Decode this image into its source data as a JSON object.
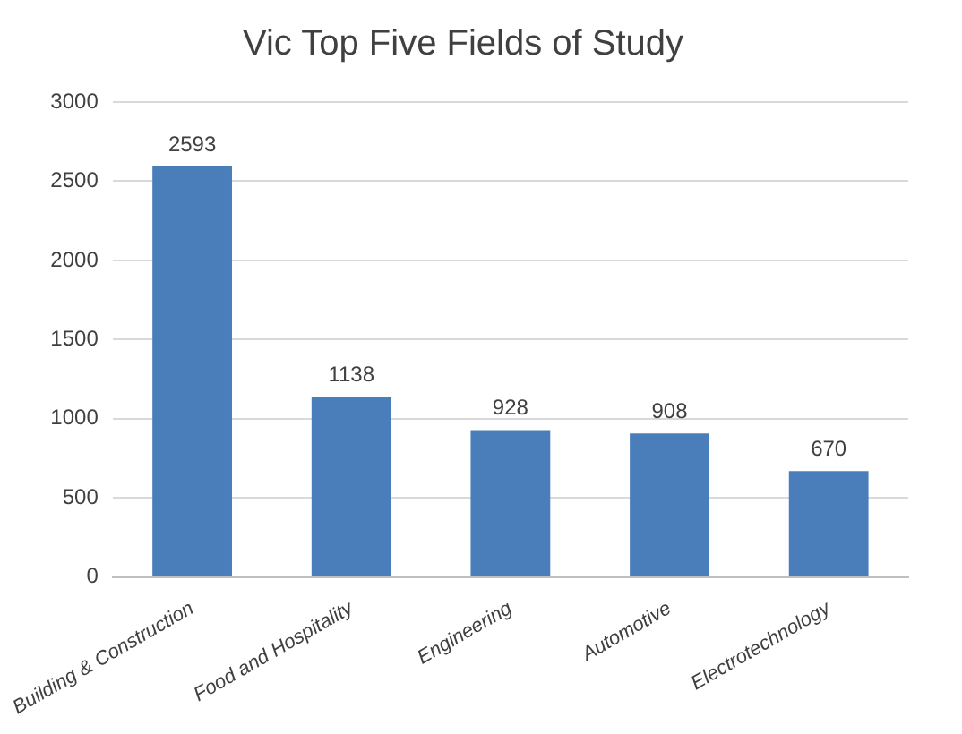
{
  "chart_data": {
    "type": "bar",
    "title": "Vic Top Five Fields of Study",
    "categories": [
      "Building & Construction",
      "Food and Hospitality",
      "Engineering",
      "Automotive",
      "Electrotechnology"
    ],
    "values": [
      2593,
      1138,
      928,
      908,
      670
    ],
    "color": "#4a7ebb",
    "ylim": [
      0,
      3000
    ],
    "yticks": [
      0,
      500,
      1000,
      1500,
      2000,
      2500,
      3000
    ],
    "grid": "y",
    "data_labels": true,
    "legend": false
  }
}
